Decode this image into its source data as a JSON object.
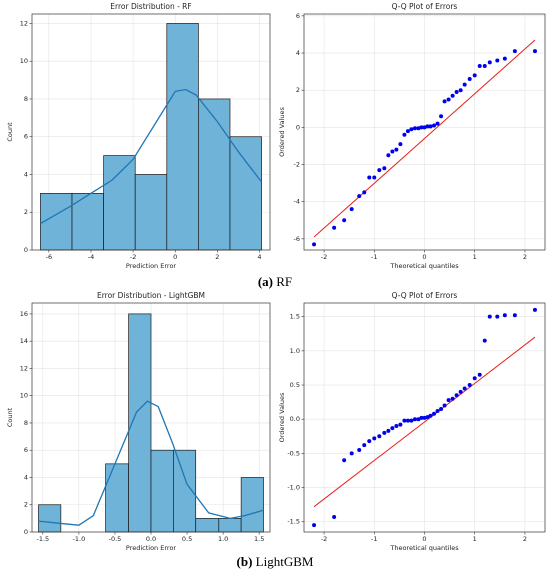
{
  "chart_data": [
    {
      "type": "histogram",
      "title": "Error Distribution - RF",
      "xlabel": "Prediction Error",
      "ylabel": "Count",
      "bins": [
        -6.4,
        -4.9,
        -3.4,
        -1.9,
        -0.4,
        1.1,
        2.6,
        4.1
      ],
      "values": [
        3,
        3,
        5,
        4,
        12,
        8,
        6
      ],
      "color": "#6fb3d9",
      "edge_color": "#1a1a1a",
      "kde": {
        "x": [
          -6.4,
          -5,
          -4,
          -3,
          -2,
          -1,
          0,
          0.5,
          1,
          2,
          3,
          4.1
        ],
        "values": [
          1.4,
          2.3,
          3.0,
          3.7,
          4.8,
          6.6,
          8.4,
          8.5,
          8.2,
          6.8,
          5.2,
          3.6
        ],
        "color": "#1f77b4"
      },
      "xlim": [
        -6.8,
        4.5
      ],
      "ylim": [
        0,
        12.5
      ],
      "xticks": [
        -6,
        -4,
        -2,
        0,
        2,
        4
      ],
      "yticks": [
        0,
        2,
        4,
        6,
        8,
        10,
        12
      ],
      "grid": true
    },
    {
      "type": "scatter",
      "title": "Q-Q Plot of Errors",
      "xlabel": "Theoretical quantiles",
      "ylabel": "Ordered Values",
      "x": [
        -2.2,
        -1.8,
        -1.6,
        -1.45,
        -1.3,
        -1.2,
        -1.1,
        -1.0,
        -0.9,
        -0.8,
        -0.72,
        -0.64,
        -0.56,
        -0.48,
        -0.4,
        -0.33,
        -0.26,
        -0.19,
        -0.12,
        -0.06,
        0,
        0.06,
        0.12,
        0.19,
        0.26,
        0.33,
        0.4,
        0.48,
        0.56,
        0.64,
        0.72,
        0.8,
        0.9,
        1.0,
        1.1,
        1.2,
        1.3,
        1.45,
        1.6,
        1.8,
        2.2
      ],
      "values": [
        -6.3,
        -5.4,
        -5.0,
        -4.4,
        -3.7,
        -3.5,
        -2.7,
        -2.7,
        -2.3,
        -2.2,
        -1.5,
        -1.3,
        -1.2,
        -0.9,
        -0.4,
        -0.2,
        -0.1,
        -0.05,
        -0.05,
        0,
        0,
        0.05,
        0.05,
        0.1,
        0.2,
        0.6,
        1.4,
        1.5,
        1.7,
        1.9,
        2.0,
        2.3,
        2.6,
        2.8,
        3.3,
        3.3,
        3.5,
        3.6,
        3.7,
        4.1,
        4.1
      ],
      "color": "#0000ee",
      "fit_line": {
        "x": [
          -2.2,
          2.2
        ],
        "values": [
          -5.9,
          4.7
        ],
        "color": "#e8201c"
      },
      "xlim": [
        -2.4,
        2.4
      ],
      "ylim": [
        -6.6,
        6.1
      ],
      "xticks": [
        -2,
        -1,
        0,
        1,
        2
      ],
      "yticks": [
        -6,
        -4,
        -2,
        0,
        2,
        4,
        6
      ],
      "grid": true
    },
    {
      "type": "histogram",
      "title": "Error Distribution - LightGBM",
      "xlabel": "Prediction Error",
      "ylabel": "Count",
      "bins": [
        -1.56,
        -1.25,
        -0.94,
        -0.63,
        -0.31,
        0,
        0.31,
        0.62,
        0.94,
        1.25,
        1.56
      ],
      "values": [
        2,
        0,
        0,
        5,
        16,
        6,
        6,
        1,
        1,
        4
      ],
      "color": "#6fb3d9",
      "edge_color": "#1a1a1a",
      "kde": {
        "x": [
          -1.56,
          -1.2,
          -1.0,
          -0.8,
          -0.5,
          -0.2,
          -0.05,
          0.1,
          0.3,
          0.5,
          0.8,
          1.1,
          1.3,
          1.56
        ],
        "values": [
          0.8,
          0.6,
          0.5,
          1.2,
          5.0,
          8.8,
          9.6,
          9.2,
          6.5,
          3.5,
          1.4,
          1.0,
          1.2,
          1.6
        ],
        "color": "#1f77b4"
      },
      "xlim": [
        -1.65,
        1.65
      ],
      "ylim": [
        0,
        16.8
      ],
      "xticks": [
        -1.5,
        {
          "value": -1,
          "label": "-1.0"
        },
        -0.5,
        {
          "value": 0,
          "label": "0.0"
        },
        0.5,
        {
          "value": 1,
          "label": "1.0"
        },
        1.5
      ],
      "yticks": [
        0,
        2,
        4,
        6,
        8,
        10,
        12,
        14,
        16
      ],
      "grid": true
    },
    {
      "type": "scatter",
      "title": "Q-Q Plot of Errors",
      "xlabel": "Theoretical quantiles",
      "ylabel": "Ordered Values",
      "x": [
        -2.2,
        -1.8,
        -1.6,
        -1.45,
        -1.3,
        -1.2,
        -1.1,
        -1.0,
        -0.9,
        -0.8,
        -0.72,
        -0.64,
        -0.56,
        -0.48,
        -0.4,
        -0.33,
        -0.26,
        -0.19,
        -0.12,
        -0.06,
        0,
        0.06,
        0.12,
        0.19,
        0.26,
        0.33,
        0.4,
        0.48,
        0.56,
        0.64,
        0.72,
        0.8,
        0.9,
        1.0,
        1.1,
        1.2,
        1.3,
        1.45,
        1.6,
        1.8,
        2.2
      ],
      "values": [
        -1.55,
        -1.43,
        -0.6,
        -0.5,
        -0.45,
        -0.38,
        -0.32,
        -0.28,
        -0.25,
        -0.2,
        -0.17,
        -0.13,
        -0.1,
        -0.08,
        -0.02,
        -0.02,
        -0.02,
        0,
        0,
        0.02,
        0.02,
        0.03,
        0.05,
        0.08,
        0.12,
        0.15,
        0.2,
        0.28,
        0.3,
        0.35,
        0.4,
        0.45,
        0.5,
        0.6,
        0.65,
        1.15,
        1.5,
        1.5,
        1.52,
        1.52,
        1.6
      ],
      "color": "#0000ee",
      "fit_line": {
        "x": [
          -2.2,
          2.2
        ],
        "values": [
          -1.28,
          1.2
        ],
        "color": "#e8201c"
      },
      "xlim": [
        -2.4,
        2.4
      ],
      "ylim": [
        -1.65,
        1.7
      ],
      "xticks": [
        -2,
        -1,
        0,
        1,
        2
      ],
      "yticks": [
        {
          "value": -1.5,
          "label": "-1.5"
        },
        {
          "value": -1,
          "label": "-1.0"
        },
        {
          "value": -0.5,
          "label": "-0.5"
        },
        {
          "value": 0,
          "label": "0.0"
        },
        {
          "value": 0.5,
          "label": "0.5"
        },
        {
          "value": 1,
          "label": "1.0"
        },
        {
          "value": 1.5,
          "label": "1.5"
        }
      ],
      "grid": true
    }
  ],
  "captions": [
    {
      "label": "(a)",
      "text": "RF"
    },
    {
      "label": "(b)",
      "text": "LightGBM"
    }
  ]
}
